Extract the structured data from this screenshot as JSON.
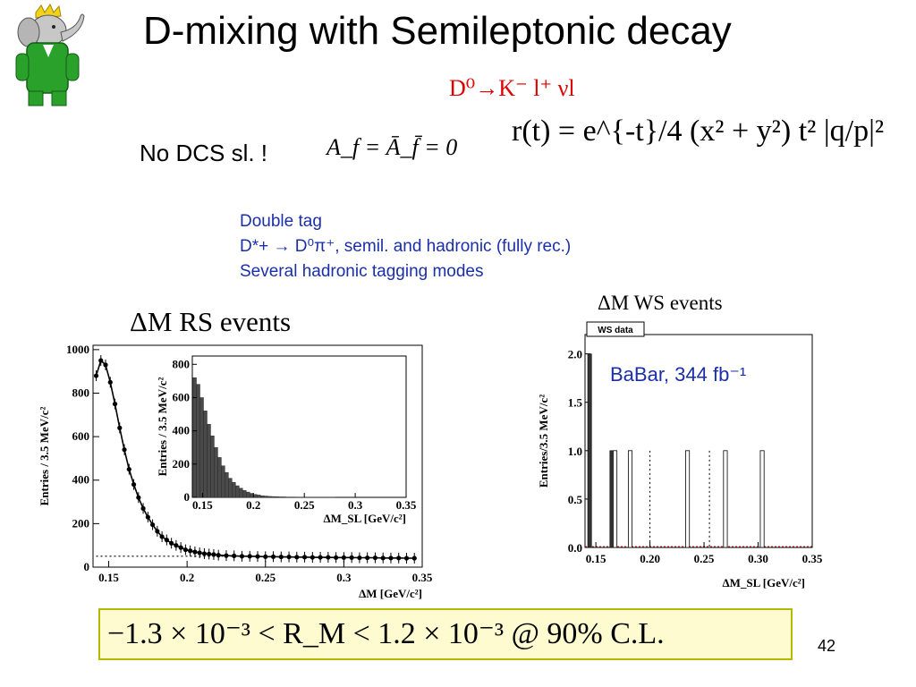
{
  "slide": {
    "title": "D-mixing with Semileptonic  decay",
    "subtitle": "D⁰→K⁻ l⁺ νl",
    "no_dcs": "No DCS sl. !",
    "eq_asym": "A_f = Ā_f̄ = 0",
    "eq_rate": "r(t) = e^{-t}/4 (x² + y²) t² |q/p|²",
    "double_tag": [
      "Double tag",
      "D*+ → D⁰π⁺, semil. and hadronic (fully rec.)",
      "Several hadronic tagging modes"
    ],
    "rs_title": "ΔM RS events",
    "ws_title": "ΔM WS events",
    "result": "−1.3 × 10⁻³ < R_M < 1.2 × 10⁻³   @ 90% C.L.",
    "page_number": "42"
  },
  "chart_data": [
    {
      "type": "scatter",
      "name": "rs-main",
      "xlabel": "ΔM [GeV/c²]",
      "ylabel": "Entries / 3.5 MeV/c²",
      "xlim": [
        0.14,
        0.35
      ],
      "ylim": [
        0,
        1020
      ],
      "xticks": [
        "0.15",
        "0.2",
        "0.25",
        "0.3",
        "0.35"
      ],
      "yticks": [
        "0",
        "200",
        "400",
        "600",
        "800",
        "1000"
      ],
      "points_x": [
        0.142,
        0.145,
        0.148,
        0.151,
        0.154,
        0.157,
        0.16,
        0.163,
        0.166,
        0.169,
        0.172,
        0.175,
        0.178,
        0.181,
        0.184,
        0.187,
        0.19,
        0.193,
        0.196,
        0.199,
        0.202,
        0.205,
        0.208,
        0.211,
        0.214,
        0.217,
        0.22,
        0.225,
        0.23,
        0.235,
        0.24,
        0.245,
        0.25,
        0.255,
        0.26,
        0.265,
        0.27,
        0.275,
        0.28,
        0.285,
        0.29,
        0.295,
        0.3,
        0.305,
        0.31,
        0.315,
        0.32,
        0.325,
        0.33,
        0.335,
        0.34,
        0.345
      ],
      "points_y": [
        880,
        950,
        930,
        850,
        750,
        640,
        540,
        450,
        380,
        320,
        270,
        230,
        195,
        165,
        140,
        125,
        110,
        100,
        90,
        80,
        75,
        70,
        66,
        62,
        60,
        58,
        55,
        53,
        52,
        50,
        50,
        49,
        48,
        48,
        47,
        47,
        46,
        46,
        45,
        45,
        45,
        44,
        44,
        44,
        43,
        43,
        43,
        42,
        42,
        42,
        41,
        41
      ]
    },
    {
      "type": "bar",
      "name": "rs-inset",
      "xlabel": "ΔM_SL [GeV/c²]",
      "ylabel": "Entries / 3.5 MeV/c²",
      "xlim": [
        0.14,
        0.35
      ],
      "ylim": [
        0,
        850
      ],
      "xticks": [
        "0.15",
        "0.2",
        "0.25",
        "0.3",
        "0.35"
      ],
      "yticks": [
        "0",
        "200",
        "400",
        "600",
        "800"
      ],
      "values": [
        720,
        680,
        600,
        520,
        440,
        370,
        300,
        240,
        190,
        150,
        115,
        90,
        70,
        55,
        42,
        32,
        24,
        18,
        14,
        10,
        8,
        6,
        5,
        4,
        3,
        3,
        2,
        2,
        2,
        1,
        1,
        1,
        1,
        1,
        1,
        1,
        1,
        1,
        1,
        1
      ]
    },
    {
      "type": "bar",
      "name": "ws",
      "legend": "WS data",
      "annotation": "BaBar, 344 fb⁻¹",
      "xlabel": "ΔM_SL [GeV/c²]",
      "ylabel": "Entries/3.5 MeV/c²",
      "xlim": [
        0.14,
        0.35
      ],
      "ylim": [
        0,
        2.2
      ],
      "xticks": [
        "0.15",
        "0.20",
        "0.25",
        "0.30",
        "0.35"
      ],
      "yticks": [
        "0.0",
        "0.5",
        "1.0",
        "1.5",
        "2.0"
      ],
      "filled_bars": [
        {
          "x": 0.1425,
          "y": 2.0
        },
        {
          "x": 0.163,
          "y": 1.0
        }
      ],
      "open_bars": [
        {
          "x": 0.166,
          "y": 1.0
        },
        {
          "x": 0.18,
          "y": 1.0
        },
        {
          "x": 0.233,
          "y": 1.0
        },
        {
          "x": 0.268,
          "y": 1.0
        },
        {
          "x": 0.302,
          "y": 1.0
        }
      ],
      "dotted_lines_x": [
        0.2,
        0.255
      ]
    }
  ]
}
